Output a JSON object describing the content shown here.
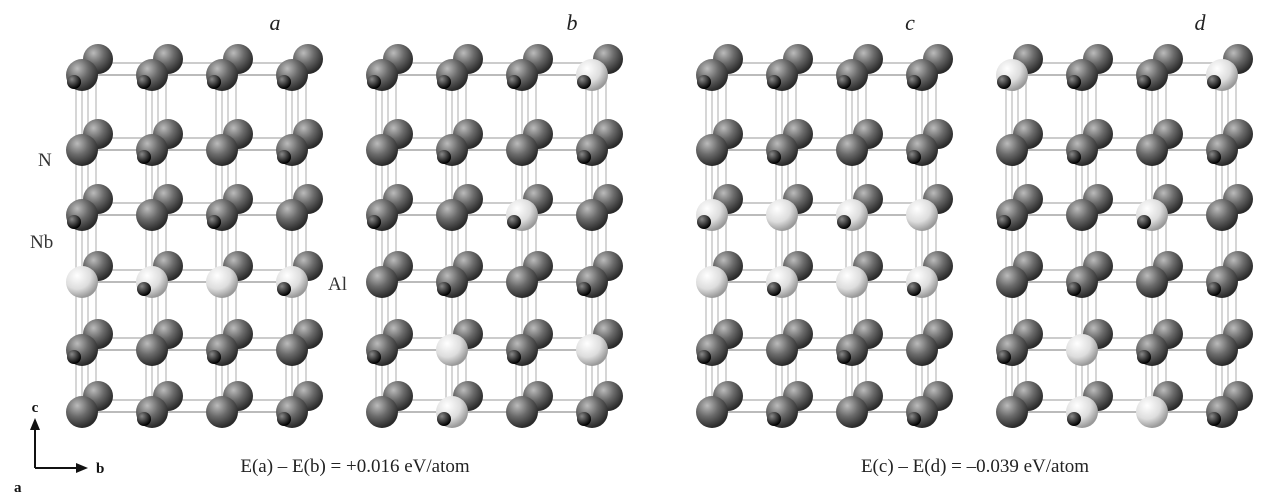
{
  "panels": [
    {
      "label": "a",
      "energy": "E(a) – E(b) = +0.016 eV/atom"
    },
    {
      "label": "b"
    },
    {
      "label": "c",
      "energy": "E(c) – E(d) = –0.039 eV/atom"
    },
    {
      "label": "d"
    }
  ],
  "atom_labels": {
    "n": "N",
    "nb": "Nb",
    "al": "Al"
  },
  "axes": {
    "c": "c",
    "b": "b",
    "a": "a"
  }
}
